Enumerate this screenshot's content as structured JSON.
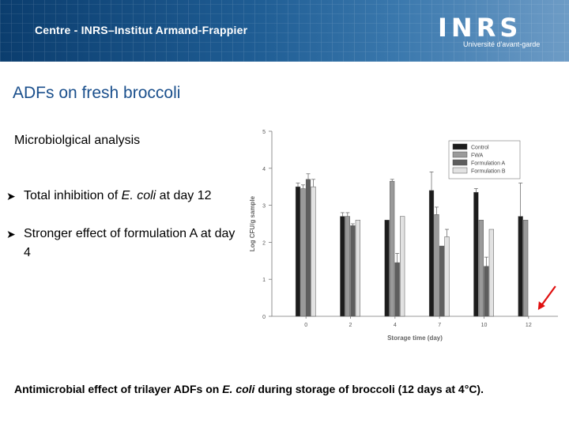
{
  "banner": {
    "title": "Centre - INRS–Institut Armand-Frappier"
  },
  "logo": {
    "wordmark": "INRS",
    "tagline": "Université d'avant-garde"
  },
  "slide": {
    "title": "ADFs on fresh broccoli",
    "subheading": "Microbiolgical analysis",
    "bullets": [
      {
        "pre": "Total inhibition of ",
        "em": "E. coli",
        "post": " at day 12"
      },
      {
        "pre": "Stronger effect of formulation A at day 4",
        "em": "",
        "post": ""
      }
    ],
    "caption": {
      "pre": "Antimicrobial effect of trilayer ADFs on ",
      "em": "E. coli",
      "post": " during storage of broccoli (12 days at 4°C)."
    }
  },
  "chart_data": {
    "type": "bar",
    "xlabel": "Storage time (day)",
    "ylabel": "Log CFU/g sample",
    "ylim": [
      0,
      5
    ],
    "yticks": [
      "0",
      "1",
      "2",
      "3",
      "4",
      "5"
    ],
    "categories": [
      "0",
      "2",
      "4",
      "7",
      "10",
      "12"
    ],
    "legend_position": "top-right",
    "series": [
      {
        "name": "Control",
        "color": "#1c1c1c",
        "values": [
          3.5,
          2.7,
          2.6,
          3.4,
          3.35,
          2.7
        ],
        "errors": [
          0.1,
          0.1,
          0.0,
          0.5,
          0.1,
          0.9
        ]
      },
      {
        "name": "FWA",
        "color": "#9a9a9a",
        "values": [
          3.45,
          2.7,
          3.65,
          2.75,
          2.6,
          2.6
        ],
        "errors": [
          0.1,
          0.1,
          0.05,
          0.2,
          0.0,
          0.0
        ]
      },
      {
        "name": "Formulation A",
        "color": "#5e5e5e",
        "values": [
          3.7,
          2.45,
          1.45,
          1.9,
          1.35,
          0
        ],
        "errors": [
          0.15,
          0.05,
          0.25,
          0.0,
          0.25,
          0.0
        ]
      },
      {
        "name": "Formulation B",
        "color": "#e2e2e2",
        "values": [
          3.5,
          2.6,
          2.7,
          2.15,
          2.35,
          0
        ],
        "errors": [
          0.2,
          0.0,
          0.0,
          0.2,
          0.0,
          0.0
        ]
      }
    ],
    "annotation": {
      "type": "red-arrow",
      "target_category": "12",
      "color": "#e01010"
    }
  }
}
